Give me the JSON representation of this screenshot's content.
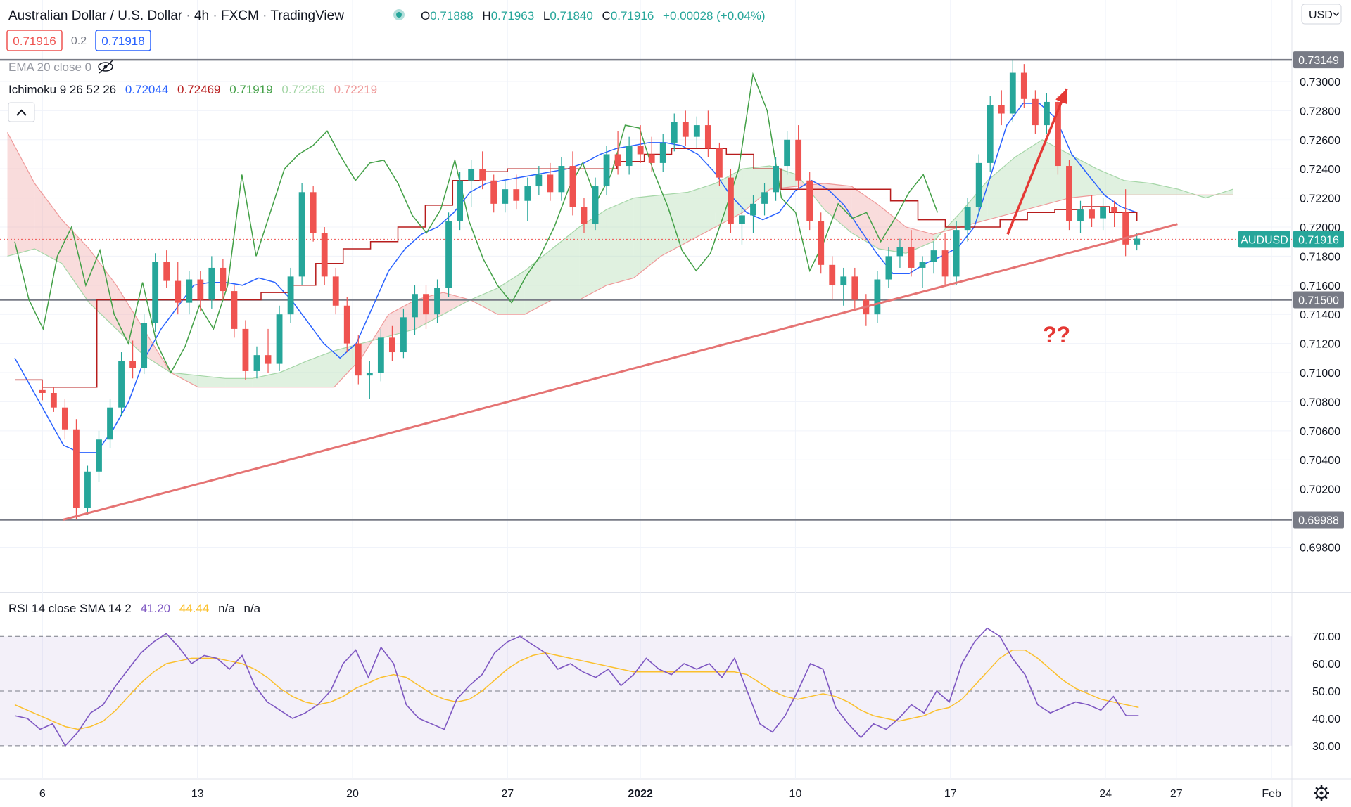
{
  "header": {
    "symbol": "Australian Dollar / U.S. Dollar",
    "interval": "4h",
    "source": "FXCM",
    "platform": "TradingView",
    "ohlc": {
      "o_label": "O",
      "o": "0.71888",
      "h_label": "H",
      "h": "0.71963",
      "l_label": "L",
      "l": "0.71840",
      "c_label": "C",
      "c": "0.71916",
      "change": "+0.00028 (+0.04%)"
    },
    "sell_price": "0.71916",
    "spread": "0.2",
    "buy_price": "0.71918",
    "currency": "USD"
  },
  "indicators": {
    "ema_label": "EMA 20 close 0",
    "ichimoku_label": "Ichimoku 9 26 52 26",
    "ichimoku_values": [
      "0.72044",
      "0.72469",
      "0.71919",
      "0.72256",
      "0.72219"
    ],
    "ichimoku_colors": [
      "#2962ff",
      "#b71c1c",
      "#43a047",
      "#a5d6a7",
      "#ef9a9a"
    ],
    "rsi_label": "RSI 14 close SMA 14 2",
    "rsi_values": [
      "41.20",
      "44.44",
      "n/a",
      "n/a"
    ],
    "rsi_colors": [
      "#7e57c2",
      "#fbc02d",
      "#131722",
      "#131722"
    ]
  },
  "annotations": {
    "question": "??",
    "ticker_tag": "AUDUSD",
    "current_price": "0.71916"
  },
  "colors": {
    "up": "#26a69a",
    "down": "#ef5350",
    "tenkan": "#2962ff",
    "kijun": "#b71c1c",
    "chikou": "#43a047",
    "cloud_bull": "#a5d6a7",
    "cloud_bear": "#ef9a9a",
    "trendline": "#e57373",
    "arrow": "#e53935",
    "rsi": "#7e57c2",
    "rsi_sma": "#fbc02d",
    "level_line": "#787b86"
  },
  "chart_data": {
    "type": "candlestick",
    "title": "Australian Dollar / U.S. Dollar, 4h, FXCM",
    "price_axis": {
      "ticks": [
        "0.73000",
        "0.72800",
        "0.72600",
        "0.72400",
        "0.72200",
        "0.72000",
        "0.71800",
        "0.71600",
        "0.71400",
        "0.71200",
        "0.71000",
        "0.70800",
        "0.70600",
        "0.70400",
        "0.70200",
        "0.69800"
      ],
      "ylim": [
        0.6972,
        0.7328
      ]
    },
    "time_axis": {
      "ticks": [
        "6",
        "13",
        "20",
        "27",
        "2022",
        "10",
        "17",
        "24",
        "27",
        "Feb"
      ],
      "xlim": [
        -0.4,
        34.6
      ]
    },
    "levels": [
      {
        "value": 0.73149,
        "label": "0.73149"
      },
      {
        "value": 0.715,
        "label": "0.71500"
      },
      {
        "value": 0.69988,
        "label": "0.69988"
      }
    ],
    "close_line": 0.71916,
    "trendline": {
      "from": [
        1.3,
        0.69988
      ],
      "to": [
        31.5,
        0.7202
      ]
    },
    "arrow": {
      "from": [
        26.9,
        0.7195
      ],
      "to": [
        28.5,
        0.7295
      ]
    },
    "candles_ohlc": [
      [
        0.7088,
        0.7094,
        0.7081,
        0.7086
      ],
      [
        0.7086,
        0.709,
        0.7073,
        0.7076
      ],
      [
        0.7076,
        0.7082,
        0.7054,
        0.7061
      ],
      [
        0.7061,
        0.7068,
        0.6999,
        0.7007
      ],
      [
        0.7007,
        0.7036,
        0.7002,
        0.7032
      ],
      [
        0.7032,
        0.706,
        0.7025,
        0.7054
      ],
      [
        0.7054,
        0.7082,
        0.7048,
        0.7076
      ],
      [
        0.7076,
        0.7114,
        0.707,
        0.7108
      ],
      [
        0.7108,
        0.7122,
        0.7096,
        0.7103
      ],
      [
        0.7103,
        0.714,
        0.7099,
        0.7134
      ],
      [
        0.7134,
        0.7182,
        0.7128,
        0.7176
      ],
      [
        0.7176,
        0.7184,
        0.7158,
        0.7163
      ],
      [
        0.7163,
        0.7176,
        0.714,
        0.7148
      ],
      [
        0.7148,
        0.717,
        0.714,
        0.7164
      ],
      [
        0.7164,
        0.717,
        0.7142,
        0.715
      ],
      [
        0.715,
        0.718,
        0.7144,
        0.7172
      ],
      [
        0.7172,
        0.7178,
        0.715,
        0.7156
      ],
      [
        0.7156,
        0.716,
        0.7124,
        0.713
      ],
      [
        0.713,
        0.7136,
        0.7095,
        0.7101
      ],
      [
        0.7101,
        0.7118,
        0.7096,
        0.7112
      ],
      [
        0.7112,
        0.713,
        0.71,
        0.7106
      ],
      [
        0.7106,
        0.7146,
        0.7101,
        0.714
      ],
      [
        0.714,
        0.7172,
        0.7134,
        0.7166
      ],
      [
        0.7166,
        0.723,
        0.716,
        0.7224
      ],
      [
        0.7224,
        0.7228,
        0.719,
        0.7196
      ],
      [
        0.7196,
        0.72,
        0.716,
        0.7166
      ],
      [
        0.7166,
        0.7172,
        0.714,
        0.7146
      ],
      [
        0.7146,
        0.7152,
        0.7114,
        0.712
      ],
      [
        0.712,
        0.7126,
        0.7092,
        0.7098
      ],
      [
        0.7098,
        0.7108,
        0.7082,
        0.71
      ],
      [
        0.71,
        0.713,
        0.7094,
        0.7124
      ],
      [
        0.7124,
        0.7132,
        0.7108,
        0.7114
      ],
      [
        0.7114,
        0.7144,
        0.711,
        0.7138
      ],
      [
        0.7138,
        0.716,
        0.7126,
        0.7154
      ],
      [
        0.7154,
        0.716,
        0.713,
        0.714
      ],
      [
        0.714,
        0.7164,
        0.7134,
        0.7158
      ],
      [
        0.7158,
        0.721,
        0.7152,
        0.7204
      ],
      [
        0.7204,
        0.7238,
        0.7198,
        0.7232
      ],
      [
        0.7232,
        0.7246,
        0.7214,
        0.724
      ],
      [
        0.724,
        0.7252,
        0.7226,
        0.7232
      ],
      [
        0.7232,
        0.7236,
        0.721,
        0.7216
      ],
      [
        0.7216,
        0.7232,
        0.721,
        0.7226
      ],
      [
        0.7226,
        0.7236,
        0.7212,
        0.7218
      ],
      [
        0.7218,
        0.7234,
        0.7204,
        0.7228
      ],
      [
        0.7228,
        0.7242,
        0.7222,
        0.7236
      ],
      [
        0.7236,
        0.7244,
        0.7218,
        0.7224
      ],
      [
        0.7224,
        0.7248,
        0.7218,
        0.7242
      ],
      [
        0.7242,
        0.7252,
        0.7208,
        0.7214
      ],
      [
        0.7214,
        0.722,
        0.7196,
        0.7202
      ],
      [
        0.7202,
        0.7234,
        0.7198,
        0.7228
      ],
      [
        0.7228,
        0.7256,
        0.7222,
        0.725
      ],
      [
        0.725,
        0.7266,
        0.7236,
        0.7242
      ],
      [
        0.7242,
        0.7262,
        0.7236,
        0.7256
      ],
      [
        0.7256,
        0.727,
        0.7244,
        0.725
      ],
      [
        0.725,
        0.7262,
        0.7238,
        0.7244
      ],
      [
        0.7244,
        0.7264,
        0.7238,
        0.7258
      ],
      [
        0.7258,
        0.7278,
        0.7252,
        0.7272
      ],
      [
        0.7272,
        0.728,
        0.7256,
        0.7262
      ],
      [
        0.7262,
        0.7276,
        0.7254,
        0.727
      ],
      [
        0.727,
        0.728,
        0.7248,
        0.7254
      ],
      [
        0.7254,
        0.7258,
        0.7228,
        0.7234
      ],
      [
        0.7234,
        0.724,
        0.7196,
        0.7202
      ],
      [
        0.7202,
        0.7214,
        0.7188,
        0.7208
      ],
      [
        0.7208,
        0.7222,
        0.7196,
        0.7216
      ],
      [
        0.7216,
        0.723,
        0.7208,
        0.7224
      ],
      [
        0.7224,
        0.7248,
        0.7218,
        0.7242
      ],
      [
        0.7242,
        0.7266,
        0.7236,
        0.726
      ],
      [
        0.726,
        0.727,
        0.7226,
        0.7232
      ],
      [
        0.7232,
        0.7238,
        0.7198,
        0.7204
      ],
      [
        0.7204,
        0.721,
        0.7168,
        0.7174
      ],
      [
        0.7174,
        0.718,
        0.715,
        0.716
      ],
      [
        0.716,
        0.7172,
        0.7146,
        0.7166
      ],
      [
        0.7166,
        0.7172,
        0.7144,
        0.715
      ],
      [
        0.715,
        0.7154,
        0.7132,
        0.714
      ],
      [
        0.714,
        0.717,
        0.7134,
        0.7164
      ],
      [
        0.7164,
        0.7186,
        0.7158,
        0.718
      ],
      [
        0.718,
        0.7192,
        0.7172,
        0.7186
      ],
      [
        0.7186,
        0.7198,
        0.7166,
        0.7172
      ],
      [
        0.7172,
        0.718,
        0.7158,
        0.7176
      ],
      [
        0.7176,
        0.719,
        0.7168,
        0.7184
      ],
      [
        0.7184,
        0.7196,
        0.716,
        0.7166
      ],
      [
        0.7166,
        0.7204,
        0.716,
        0.7198
      ],
      [
        0.7198,
        0.722,
        0.719,
        0.7214
      ],
      [
        0.7214,
        0.725,
        0.7208,
        0.7244
      ],
      [
        0.7244,
        0.729,
        0.7238,
        0.7284
      ],
      [
        0.7284,
        0.7294,
        0.727,
        0.7278
      ],
      [
        0.7278,
        0.7315,
        0.7272,
        0.7306
      ],
      [
        0.7306,
        0.7312,
        0.7282,
        0.7288
      ],
      [
        0.7288,
        0.7294,
        0.7264,
        0.727
      ],
      [
        0.727,
        0.7292,
        0.7264,
        0.7286
      ],
      [
        0.7286,
        0.729,
        0.7236,
        0.7242
      ],
      [
        0.7242,
        0.7246,
        0.7198,
        0.7204
      ],
      [
        0.7204,
        0.7218,
        0.7196,
        0.7212
      ],
      [
        0.7212,
        0.7222,
        0.72,
        0.7206
      ],
      [
        0.7206,
        0.722,
        0.7198,
        0.7214
      ],
      [
        0.7214,
        0.7218,
        0.72,
        0.721
      ],
      [
        0.721,
        0.7226,
        0.718,
        0.7188
      ],
      [
        0.7188,
        0.7196,
        0.7184,
        0.7192
      ]
    ],
    "tenkan": [
      0.711,
      0.709,
      0.707,
      0.705,
      0.7045,
      0.7045,
      0.706,
      0.708,
      0.711,
      0.713,
      0.7145,
      0.716,
      0.7162,
      0.7162,
      0.716,
      0.7165,
      0.7162,
      0.715,
      0.7135,
      0.712,
      0.711,
      0.712,
      0.7145,
      0.717,
      0.7185,
      0.7195,
      0.72,
      0.721,
      0.7224,
      0.723,
      0.7232,
      0.7234,
      0.7236,
      0.7238,
      0.724,
      0.7244,
      0.725,
      0.7254,
      0.7256,
      0.7258,
      0.7258,
      0.7256,
      0.725,
      0.7238,
      0.7222,
      0.721,
      0.7205,
      0.721,
      0.7225,
      0.7232,
      0.7226,
      0.7215,
      0.7198,
      0.7182,
      0.7168,
      0.7168,
      0.7175,
      0.718,
      0.7186,
      0.72,
      0.7235,
      0.727,
      0.7285,
      0.7285,
      0.7275,
      0.725,
      0.7236,
      0.7222,
      0.7214,
      0.721
    ],
    "kijun": [
      0.7095,
      0.709,
      0.709,
      0.715,
      0.715,
      0.715,
      0.715,
      0.715,
      0.715,
      0.7155,
      0.716,
      0.7175,
      0.7185,
      0.719,
      0.72,
      0.7215,
      0.7232,
      0.7238,
      0.724,
      0.724,
      0.724,
      0.724,
      0.7245,
      0.725,
      0.7254,
      0.7254,
      0.725,
      0.724,
      0.7226,
      0.7226,
      0.7226,
      0.7226,
      0.7218,
      0.7205,
      0.72,
      0.72,
      0.7205,
      0.721,
      0.7212,
      0.7214,
      0.721,
      0.7204
    ],
    "chikou": [
      0.719,
      0.715,
      0.713,
      0.718,
      0.72,
      0.716,
      0.7184,
      0.714,
      0.712,
      0.7162,
      0.712,
      0.71,
      0.7118,
      0.7146,
      0.713,
      0.716,
      0.7236,
      0.718,
      0.721,
      0.724,
      0.725,
      0.7256,
      0.7266,
      0.7248,
      0.7232,
      0.7244,
      0.7246,
      0.723,
      0.7208,
      0.7196,
      0.7212,
      0.7246,
      0.7204,
      0.7178,
      0.716,
      0.7148,
      0.7166,
      0.718,
      0.72,
      0.7226,
      0.7244,
      0.7218,
      0.7236,
      0.727,
      0.7268,
      0.7238,
      0.7214,
      0.7184,
      0.717,
      0.7182,
      0.721,
      0.724,
      0.7305,
      0.728,
      0.722,
      0.721,
      0.717,
      0.719,
      0.7216,
      0.7206,
      0.721,
      0.719,
      0.7206,
      0.7224,
      0.7236,
      0.721
    ],
    "cloud_a": [
      0.718,
      0.7185,
      0.7175,
      0.7148,
      0.713,
      0.7112,
      0.71,
      0.7098,
      0.7096,
      0.7096,
      0.71,
      0.7108,
      0.7115,
      0.712,
      0.7125,
      0.713,
      0.714,
      0.715,
      0.7158,
      0.717,
      0.7185,
      0.72,
      0.7212,
      0.722,
      0.7222,
      0.7224,
      0.723,
      0.724,
      0.7242,
      0.7236,
      0.7212,
      0.7196,
      0.7185,
      0.7182,
      0.719,
      0.721,
      0.7232,
      0.7248,
      0.726,
      0.725,
      0.724,
      0.7232,
      0.723,
      0.7226,
      0.722,
      0.7226
    ],
    "cloud_b": [
      0.7265,
      0.723,
      0.7205,
      0.7185,
      0.716,
      0.713,
      0.71,
      0.709,
      0.709,
      0.709,
      0.709,
      0.709,
      0.709,
      0.711,
      0.714,
      0.715,
      0.7155,
      0.715,
      0.714,
      0.714,
      0.715,
      0.715,
      0.716,
      0.7165,
      0.718,
      0.719,
      0.72,
      0.721,
      0.7226,
      0.7228,
      0.723,
      0.7228,
      0.7215,
      0.72,
      0.7195,
      0.72,
      0.7205,
      0.721,
      0.7215,
      0.722,
      0.7222,
      0.7222,
      0.7222,
      0.7222,
      0.7222,
      0.7222
    ],
    "rsi": {
      "ticks": [
        "70.00",
        "60.00",
        "50.00",
        "40.00",
        "30.00"
      ],
      "ylim": [
        22,
        77
      ],
      "upper": 70,
      "lower": 30,
      "values": [
        41,
        40,
        36,
        38,
        30,
        35,
        42,
        45,
        52,
        58,
        64,
        68,
        71,
        66,
        60,
        63,
        62,
        58,
        63,
        52,
        46,
        43,
        40,
        42,
        45,
        50,
        60,
        65,
        55,
        66,
        60,
        45,
        40,
        38,
        36,
        47,
        52,
        56,
        64,
        68,
        70,
        67,
        64,
        58,
        60,
        57,
        55,
        58,
        52,
        56,
        62,
        58,
        56,
        60,
        58,
        60,
        55,
        62,
        50,
        38,
        35,
        41,
        50,
        60,
        58,
        44,
        38,
        33,
        38,
        36,
        40,
        45,
        42,
        50,
        46,
        60,
        68,
        73,
        70,
        62,
        56,
        45,
        42,
        44,
        46,
        45,
        43,
        48,
        41,
        41
      ],
      "sma": [
        45,
        43,
        41,
        39,
        37,
        36,
        37,
        39,
        43,
        48,
        53,
        57,
        60,
        61,
        62,
        62,
        62,
        61,
        60,
        58,
        55,
        51,
        48,
        46,
        45,
        46,
        48,
        51,
        53,
        55,
        56,
        55,
        52,
        49,
        47,
        46,
        47,
        50,
        54,
        58,
        61,
        63,
        64,
        63,
        62,
        61,
        60,
        59,
        58,
        57,
        57,
        57,
        57,
        57,
        57,
        57,
        57,
        57,
        56,
        53,
        50,
        48,
        47,
        48,
        49,
        48,
        46,
        43,
        41,
        40,
        39,
        40,
        41,
        43,
        44,
        47,
        52,
        57,
        62,
        65,
        65,
        62,
        58,
        54,
        51,
        49,
        47,
        46,
        45,
        44
      ]
    }
  }
}
